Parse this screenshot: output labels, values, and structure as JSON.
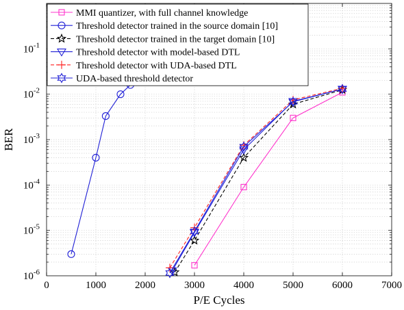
{
  "chart_data": {
    "type": "line",
    "title": "",
    "xlabel": "P/E Cycles",
    "ylabel": "BER",
    "xlim": [
      0,
      7000
    ],
    "ylim": [
      1e-06,
      1
    ],
    "yscale": "log",
    "grid": true,
    "legend_position": "top-left",
    "xticks": [
      "0",
      "1000",
      "2000",
      "3000",
      "4000",
      "5000",
      "6000",
      "7000"
    ],
    "yticks": [
      {
        "value": 1e-06,
        "base": "10",
        "exp": "-6"
      },
      {
        "value": 1e-05,
        "base": "10",
        "exp": "-5"
      },
      {
        "value": 0.0001,
        "base": "10",
        "exp": "-4"
      },
      {
        "value": 0.001,
        "base": "10",
        "exp": "-3"
      },
      {
        "value": 0.01,
        "base": "10",
        "exp": "-2"
      },
      {
        "value": 0.1,
        "base": "10",
        "exp": "-1"
      }
    ],
    "series": [
      {
        "name": "MMI quantizer, with full channel knowledge",
        "color": "#ff33cc",
        "marker": "square",
        "dash": "solid",
        "x": [
          3000,
          4000,
          5000,
          6000
        ],
        "y": [
          1.7e-06,
          9e-05,
          0.003,
          0.011
        ]
      },
      {
        "name": "Threshold detector trained in the source domain [10]",
        "color": "#1f1fd6",
        "marker": "circle",
        "dash": "solid",
        "x": [
          500,
          1000,
          1200,
          1500,
          1700
        ],
        "y": [
          3e-06,
          0.0004,
          0.0033,
          0.01,
          0.016
        ]
      },
      {
        "name": "Threshold detector trained in the target domain [10]",
        "color": "#000000",
        "marker": "star",
        "dash": "dashed",
        "x": [
          2600,
          3000,
          4000,
          5000,
          6000
        ],
        "y": [
          1.2e-06,
          6e-06,
          0.0004,
          0.006,
          0.0125
        ]
      },
      {
        "name": "Threshold detector with model-based DTL",
        "color": "#1f1fd6",
        "marker": "triangle-down",
        "dash": "solid",
        "x": [
          2550,
          3000,
          4000,
          5000,
          6000
        ],
        "y": [
          1.3e-06,
          9e-06,
          0.0006,
          0.007,
          0.013
        ]
      },
      {
        "name": "Threshold detector with UDA-based DTL",
        "color": "#ff2020",
        "marker": "plus",
        "dash": "dashed",
        "x": [
          2500,
          3000,
          4000,
          5000,
          6000
        ],
        "y": [
          1.5e-06,
          1.15e-05,
          0.00075,
          0.0075,
          0.0135
        ]
      },
      {
        "name": "UDA-based threshold detector",
        "color": "#1f1fd6",
        "marker": "hexagram",
        "dash": "solid",
        "x": [
          2500,
          3000,
          4000,
          5000,
          6000
        ],
        "y": [
          1.15e-06,
          9.5e-06,
          0.0007,
          0.0068,
          0.013
        ]
      }
    ]
  }
}
